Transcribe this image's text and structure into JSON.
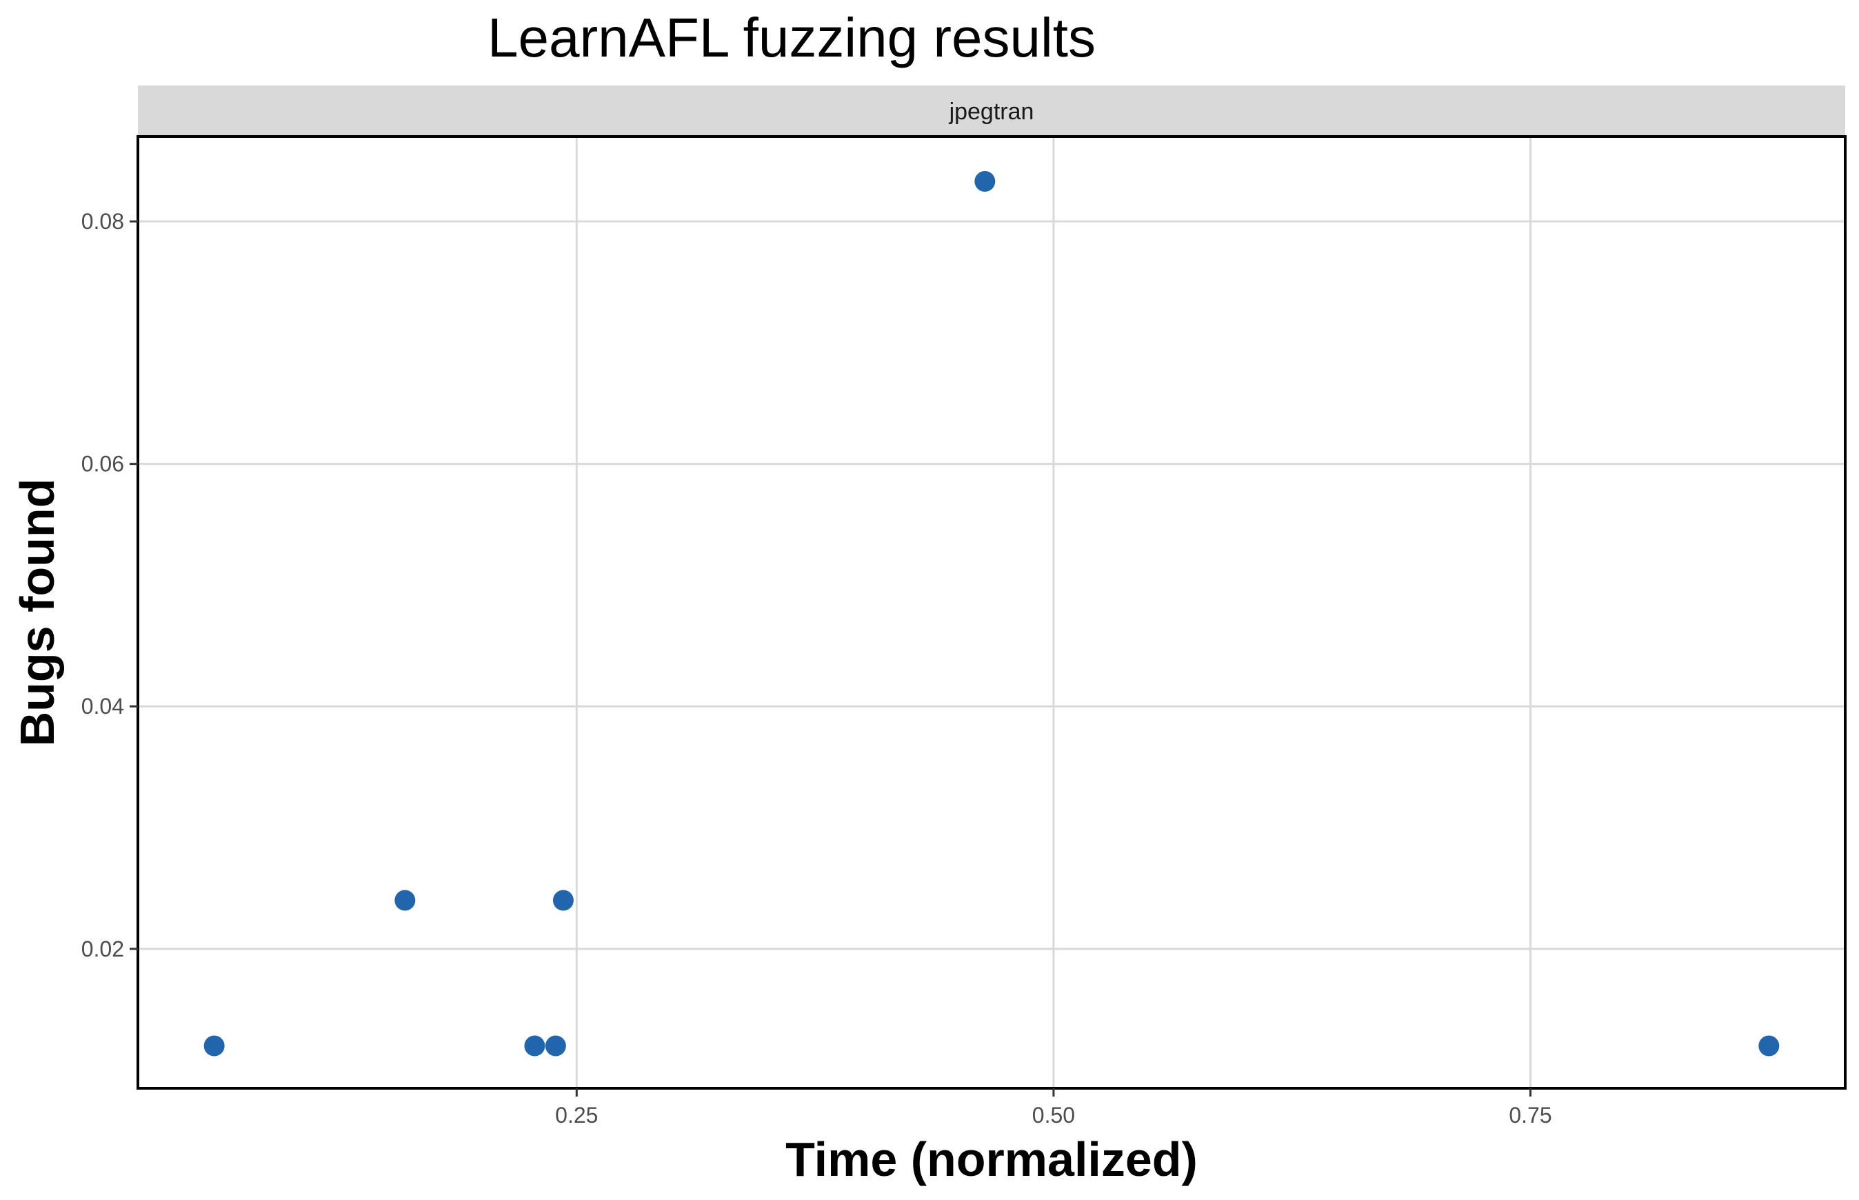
{
  "chart_data": {
    "type": "scatter",
    "title": "LearnAFL fuzzing results",
    "facet_label": "jpegtran",
    "xlabel": "Time (normalized)",
    "ylabel": "Bugs found",
    "xlim": [
      0.02,
      0.915
    ],
    "ylim": [
      0.0085,
      0.087
    ],
    "x_ticks": [
      0.25,
      0.5,
      0.75
    ],
    "x_tick_labels": [
      "0.25",
      "0.50",
      "0.75"
    ],
    "y_ticks": [
      0.02,
      0.04,
      0.06,
      0.08
    ],
    "y_tick_labels": [
      "0.02",
      "0.04",
      "0.06",
      "0.08"
    ],
    "grid": true,
    "legend": "none",
    "point_color": "#2166ac",
    "points": [
      {
        "x": 0.06,
        "y": 0.012
      },
      {
        "x": 0.16,
        "y": 0.024
      },
      {
        "x": 0.228,
        "y": 0.012
      },
      {
        "x": 0.239,
        "y": 0.012
      },
      {
        "x": 0.243,
        "y": 0.024
      },
      {
        "x": 0.464,
        "y": 0.0833
      },
      {
        "x": 0.875,
        "y": 0.012
      }
    ]
  }
}
